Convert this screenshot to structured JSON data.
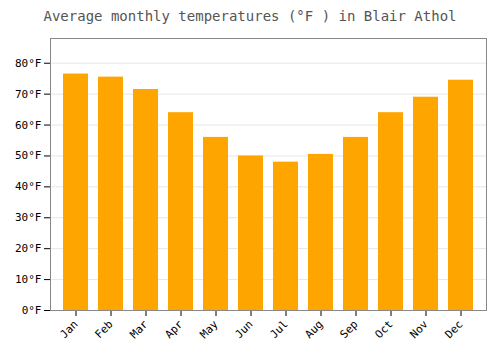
{
  "chart_data": {
    "type": "bar",
    "title": "Average monthly temperatures (°F ) in Blair Athol",
    "categories": [
      "Jan",
      "Feb",
      "Mar",
      "Apr",
      "May",
      "Jun",
      "Jul",
      "Aug",
      "Sep",
      "Oct",
      "Nov",
      "Dec"
    ],
    "values": [
      76.5,
      75.5,
      71.5,
      64,
      56,
      50,
      48,
      50.5,
      56,
      64,
      69,
      74.5
    ],
    "color": "#FFA500",
    "ylim": [
      0,
      88
    ],
    "yticks": [
      {
        "value": 0,
        "label": "0°F"
      },
      {
        "value": 10,
        "label": "10°F"
      },
      {
        "value": 20,
        "label": "20°F"
      },
      {
        "value": 30,
        "label": "30°F"
      },
      {
        "value": 40,
        "label": "40°F"
      },
      {
        "value": 50,
        "label": "50°F"
      },
      {
        "value": 60,
        "label": "60°F"
      },
      {
        "value": 70,
        "label": "70°F"
      },
      {
        "value": 80,
        "label": "80°F"
      }
    ],
    "grid": true
  }
}
